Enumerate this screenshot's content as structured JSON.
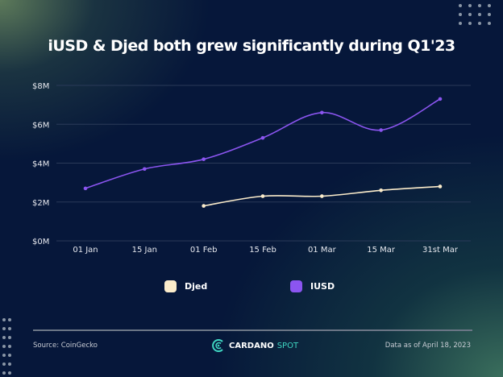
{
  "chart_data": {
    "type": "line",
    "title": "iUSD & Djed both grew significantly during Q1'23",
    "categories": [
      "01 Jan",
      "15 Jan",
      "01 Feb",
      "15 Feb",
      "01 Mar",
      "15 Mar",
      "31st Mar"
    ],
    "yticks": [
      "$0M",
      "$2M",
      "$4M",
      "$6M",
      "$8M"
    ],
    "ylim": [
      0,
      8
    ],
    "grid": true,
    "legend_position": "bottom",
    "series": [
      {
        "name": "Djed",
        "color": "#fbeccb",
        "values": [
          null,
          null,
          1.8,
          2.3,
          2.3,
          2.6,
          2.8
        ]
      },
      {
        "name": "IUSD",
        "color": "#8b55f0",
        "values": [
          2.7,
          3.7,
          4.2,
          5.3,
          6.6,
          5.7,
          7.3
        ]
      }
    ]
  },
  "footer": {
    "source": "Source: CoinGecko",
    "brand_a": "CARDANO",
    "brand_b": "SPOT",
    "date": "Data as of April 18, 2023"
  }
}
